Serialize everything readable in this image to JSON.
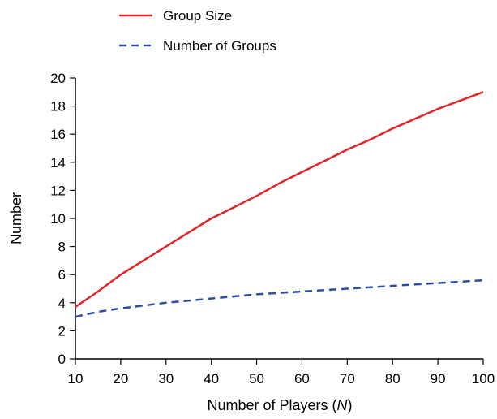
{
  "chart_data": {
    "type": "line",
    "title": "",
    "xlabel": "Number of Players (",
    "xlabel_var": "N",
    "xlabel_end": ")",
    "ylabel": "Number",
    "xlim": [
      10,
      100
    ],
    "ylim": [
      0,
      20
    ],
    "xticks": [
      10,
      20,
      30,
      40,
      50,
      60,
      70,
      80,
      90,
      100
    ],
    "yticks": [
      0,
      2,
      4,
      6,
      8,
      10,
      12,
      14,
      16,
      18,
      20
    ],
    "grid": false,
    "legend_position": "top-left",
    "x": [
      10,
      15,
      20,
      25,
      30,
      35,
      40,
      45,
      50,
      55,
      60,
      65,
      70,
      75,
      80,
      85,
      90,
      95,
      100
    ],
    "series": [
      {
        "name": "Group Size",
        "color": "#e0262b",
        "style": "solid",
        "values": [
          3.7,
          4.8,
          6.0,
          7.0,
          8.0,
          9.0,
          10.0,
          10.8,
          11.6,
          12.5,
          13.3,
          14.1,
          14.9,
          15.6,
          16.4,
          17.1,
          17.8,
          18.4,
          19.0
        ]
      },
      {
        "name": "Number of Groups",
        "color": "#2d4ea0",
        "style": "dashed",
        "values": [
          3.0,
          3.35,
          3.6,
          3.8,
          4.0,
          4.15,
          4.3,
          4.45,
          4.6,
          4.7,
          4.8,
          4.9,
          5.0,
          5.1,
          5.2,
          5.3,
          5.4,
          5.5,
          5.6
        ]
      }
    ]
  }
}
